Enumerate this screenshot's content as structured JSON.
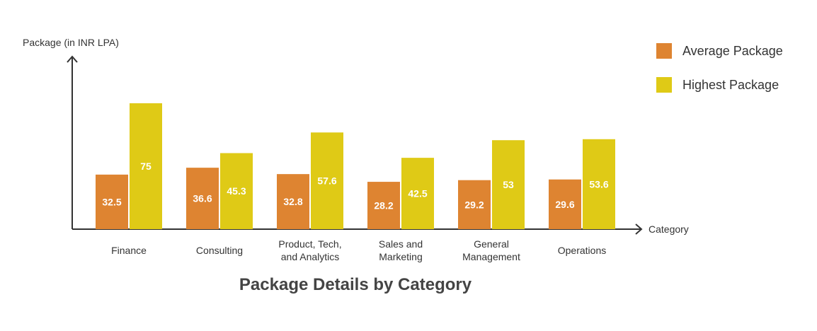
{
  "chart_data": {
    "type": "bar",
    "title": "Package Details by Category",
    "xlabel": "Category",
    "ylabel": "Package (in INR LPA)",
    "ylim": [
      0,
      80
    ],
    "legend_position": "top-right",
    "categories": [
      [
        "Finance"
      ],
      [
        "Consulting"
      ],
      [
        "Product, Tech,",
        "and Analytics"
      ],
      [
        "Sales and",
        "Marketing"
      ],
      [
        "General",
        "Management"
      ],
      [
        "Operations"
      ]
    ],
    "series": [
      {
        "name": "Average Package",
        "color": "#DE8431",
        "values": [
          32.5,
          36.6,
          32.8,
          28.2,
          29.2,
          29.6
        ],
        "labels": [
          "32.5",
          "36.6",
          "32.8",
          "28.2",
          "29.2",
          "29.6"
        ]
      },
      {
        "name": "Highest Package",
        "color": "#DFCA16",
        "values": [
          75,
          45.3,
          57.6,
          42.5,
          53,
          53.6
        ],
        "labels": [
          "75",
          "45.3",
          "57.6",
          "42.5",
          "53",
          "53.6"
        ]
      }
    ]
  }
}
